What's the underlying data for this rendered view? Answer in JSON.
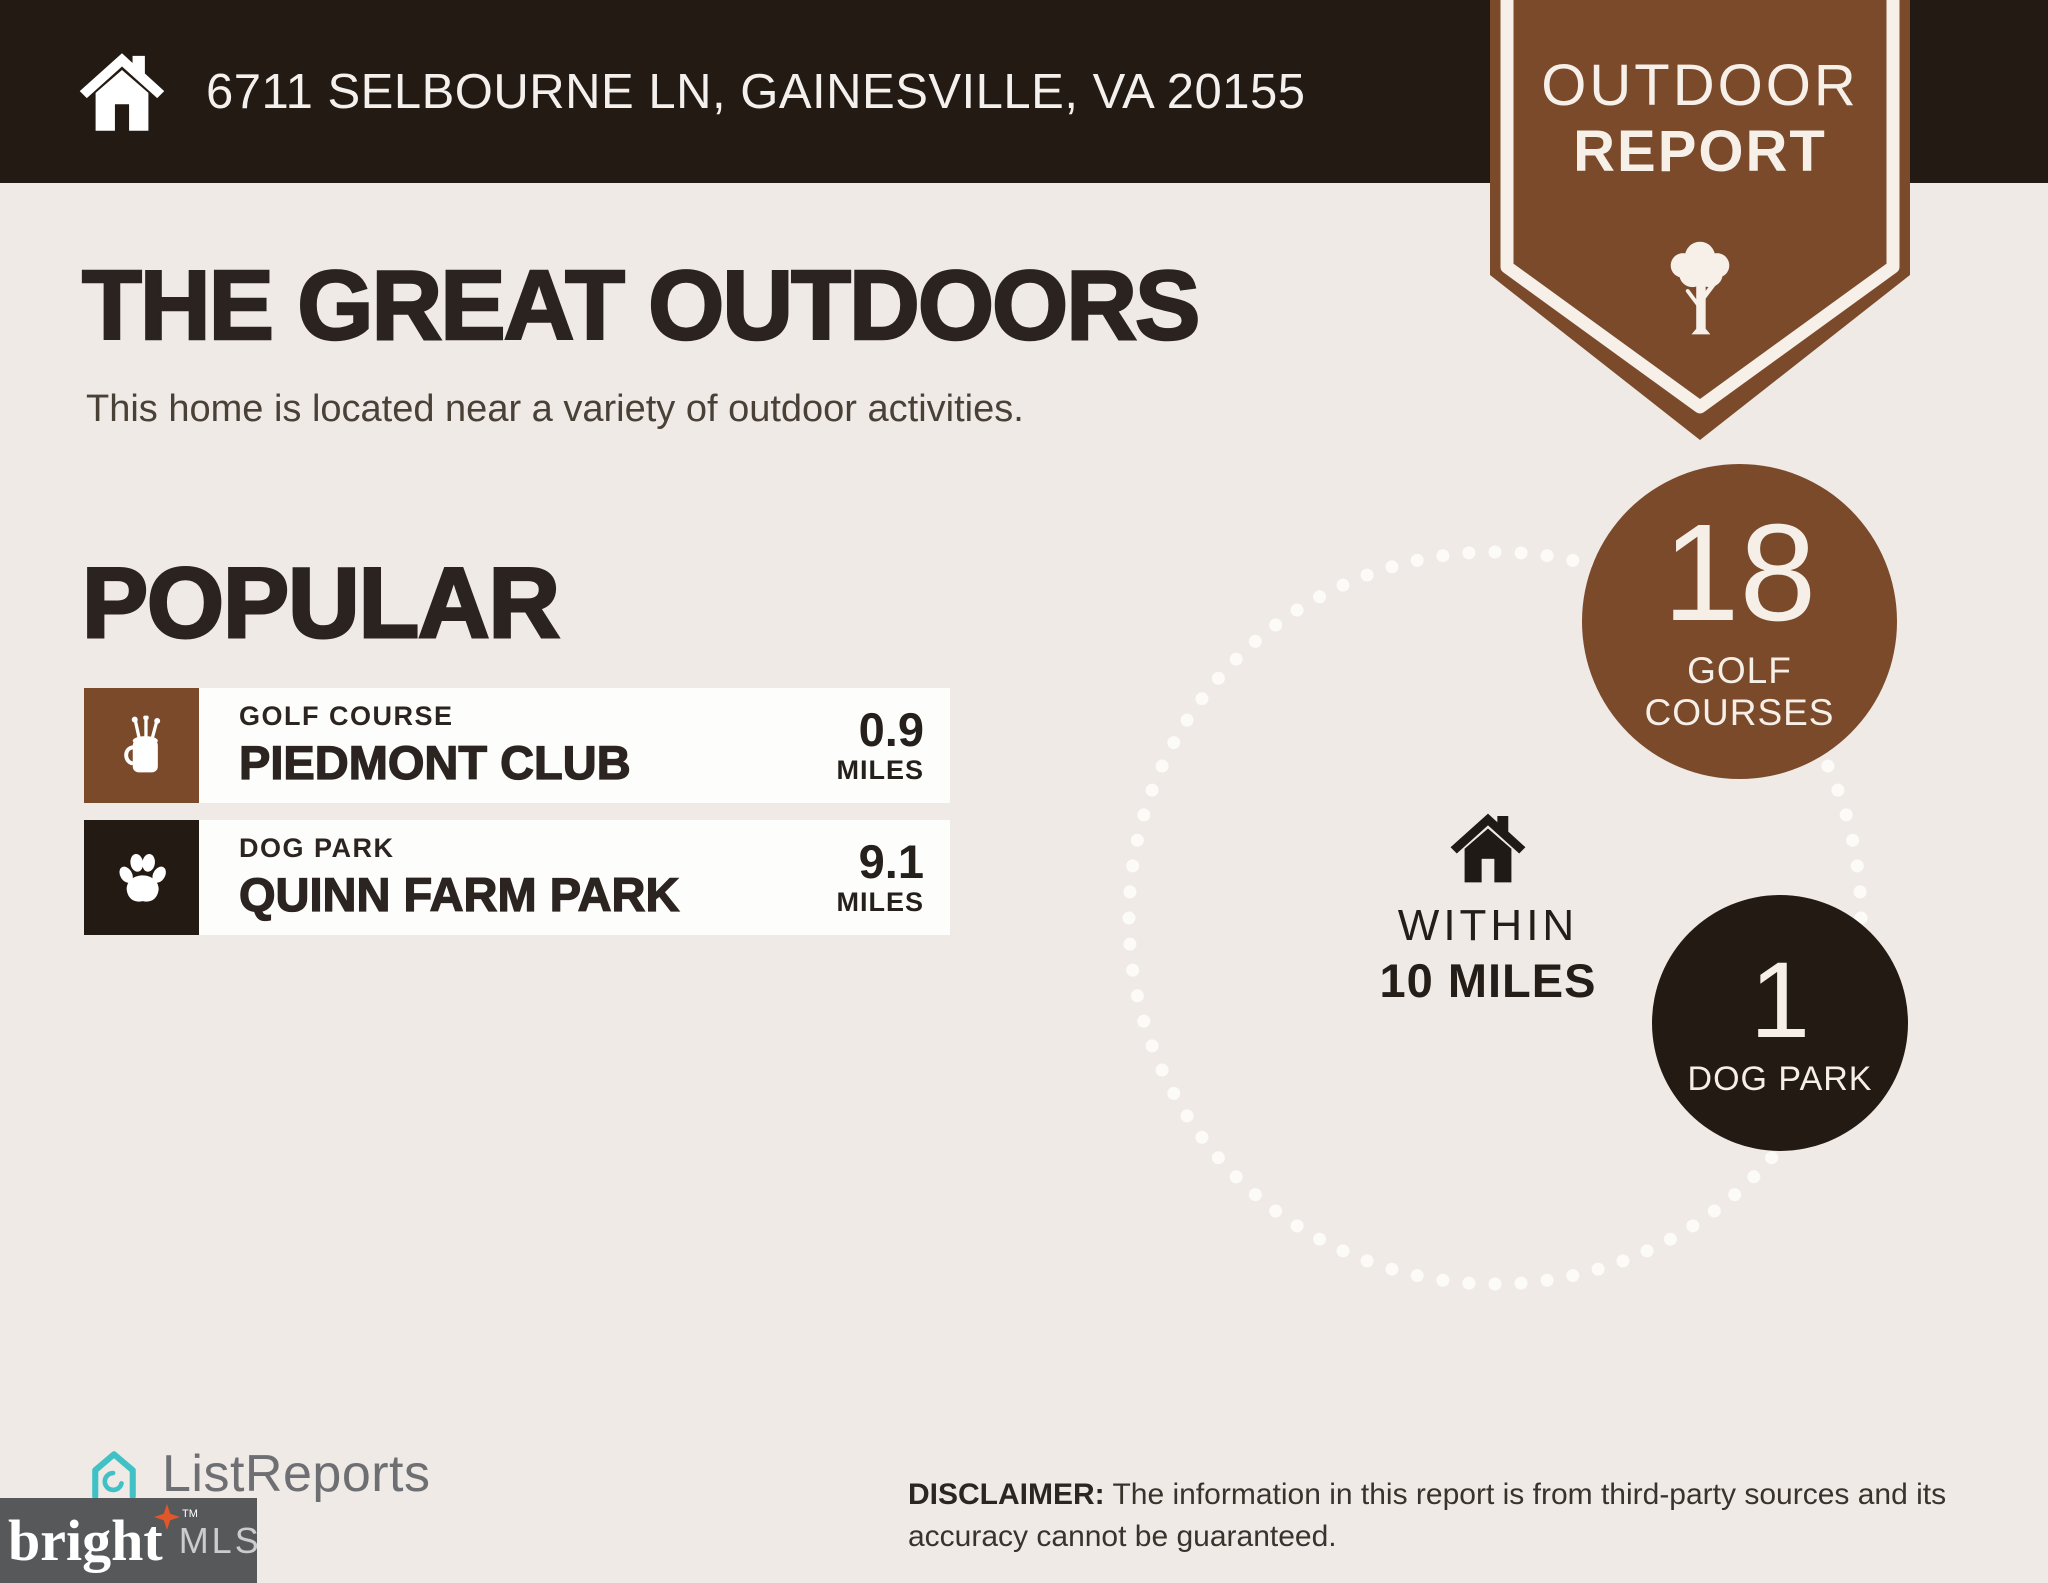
{
  "header": {
    "address": "6711 SELBOURNE LN, GAINESVILLE, VA 20155"
  },
  "ribbon": {
    "line1": "OUTDOOR",
    "line2": "REPORT"
  },
  "intro": {
    "title": "THE GREAT OUTDOORS",
    "subtitle": "This home is located near a variety of outdoor activities."
  },
  "popular": {
    "heading": "POPULAR",
    "items": [
      {
        "category": "GOLF COURSE",
        "name": "PIEDMONT CLUB",
        "distance": "0.9",
        "unit": "MILES",
        "icon": "golf-bag-icon"
      },
      {
        "category": "DOG PARK",
        "name": "QUINN FARM PARK",
        "distance": "9.1",
        "unit": "MILES",
        "icon": "paw-icon"
      }
    ]
  },
  "stats": {
    "within": {
      "line1": "WITHIN",
      "line2": "10 MILES"
    },
    "bubbles": [
      {
        "value": "18",
        "label_line1": "GOLF",
        "label_line2": "COURSES"
      },
      {
        "value": "1",
        "label_line1": "DOG PARK",
        "label_line2": ""
      }
    ]
  },
  "footer": {
    "logo_text": "ListReports",
    "mls_name": "bright",
    "mls_tm": "TM",
    "mls_suffix": "MLS",
    "disclaimer_label": "DISCLAIMER:",
    "disclaimer_text": " The information in this report is from third-party sources and its accuracy cannot be guaranteed."
  },
  "colors": {
    "brown": "#7a4a2b",
    "dark": "#241a14",
    "background": "#efeae5",
    "card": "#fdfdfc",
    "teal": "#3fc1c5",
    "orange": "#e0572a"
  }
}
